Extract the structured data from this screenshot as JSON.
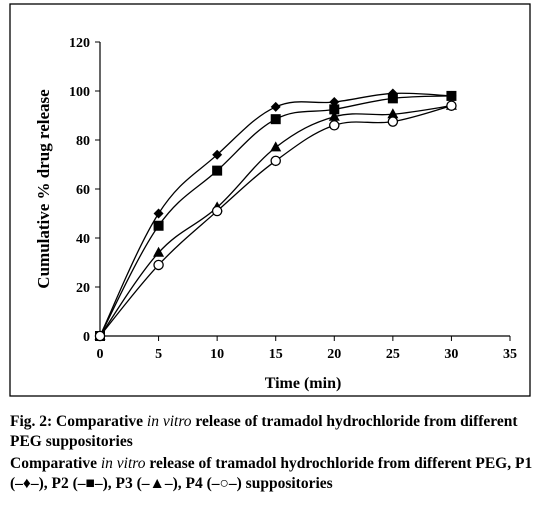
{
  "chart_data": {
    "type": "line",
    "x": [
      0,
      5,
      10,
      15,
      20,
      25,
      30
    ],
    "xlabel": "Time (min)",
    "ylabel": "Cumulative % drug release",
    "xlim": [
      0,
      35
    ],
    "ylim": [
      0,
      120
    ],
    "xticks": [
      0,
      5,
      10,
      15,
      20,
      25,
      30,
      35
    ],
    "yticks": [
      0,
      20,
      40,
      60,
      80,
      100,
      120
    ],
    "grid": false,
    "legend": "none",
    "series": [
      {
        "key": "P1",
        "marker": "diamond-filled",
        "color": "#000000",
        "values": [
          0,
          50,
          74,
          93.5,
          95.5,
          99,
          98
        ]
      },
      {
        "key": "P2",
        "marker": "square-filled",
        "color": "#000000",
        "values": [
          0,
          45,
          67.5,
          88.5,
          92.5,
          97,
          98
        ]
      },
      {
        "key": "P3",
        "marker": "triangle-filled",
        "color": "#000000",
        "values": [
          0,
          34,
          52.5,
          77,
          89.5,
          90.5,
          94
        ]
      },
      {
        "key": "P4",
        "marker": "circle-open",
        "color": "#000000",
        "values": [
          0,
          29,
          51,
          71.5,
          86,
          87.5,
          94
        ]
      }
    ]
  },
  "caption": {
    "line1_a": "Fig. 2: Comparative ",
    "line1_italic": "in vitro",
    "line1_b": " release of tramadol hydrochloride from different PEG suppositories",
    "line2_a": "Comparative ",
    "line2_italic": "in vitro",
    "line2_b": " release of tramadol hydrochloride from different PEG, P1 (–♦–), P2 (–■–), P3 (–▲–), P4 (–○–) suppositories"
  }
}
